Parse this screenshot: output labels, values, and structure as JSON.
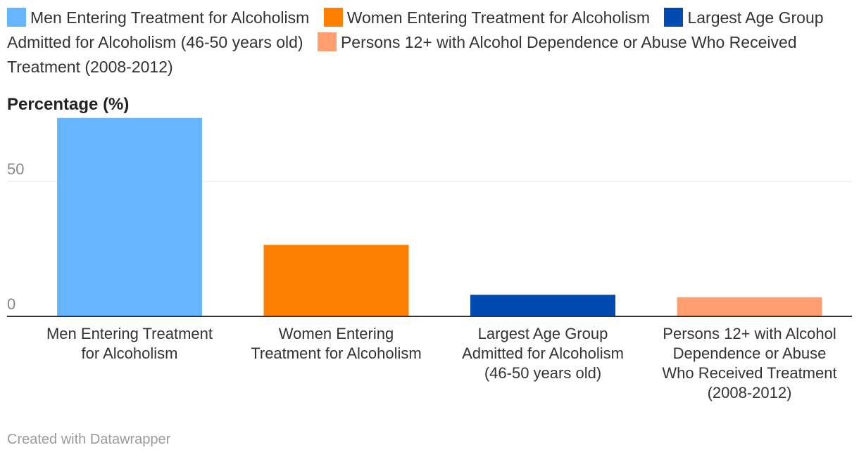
{
  "chart_data": {
    "type": "bar",
    "ylabel": "Percentage (%)",
    "yticks": [
      0,
      50
    ],
    "ylim": [
      0,
      73
    ],
    "grid": true,
    "legend_position": "top",
    "categories": [
      "Men Entering Treatment for Alcoholism",
      "Women Entering Treatment for Alcoholism",
      "Largest Age Group Admitted for Alcoholism (46-50 years old)",
      "Persons 12+ with Alcohol Dependence or Abuse Who Received Treatment (2008-2012)"
    ],
    "category_label_lines": [
      [
        "Men Entering Treatment",
        "for Alcoholism"
      ],
      [
        "Women Entering",
        "Treatment for Alcoholism"
      ],
      [
        "Largest Age Group",
        "Admitted for Alcoholism",
        "(46-50 years old)"
      ],
      [
        "Persons 12+ with Alcohol",
        "Dependence or Abuse",
        "Who Received Treatment",
        "(2008-2012)"
      ]
    ],
    "values": [
      73.5,
      26.5,
      8.0,
      7.1
    ],
    "colors": [
      "#67b4ff",
      "#ff7f00",
      "#004ab0",
      "#ff9e6e"
    ]
  },
  "footer": {
    "credit": "Created with Datawrapper"
  }
}
